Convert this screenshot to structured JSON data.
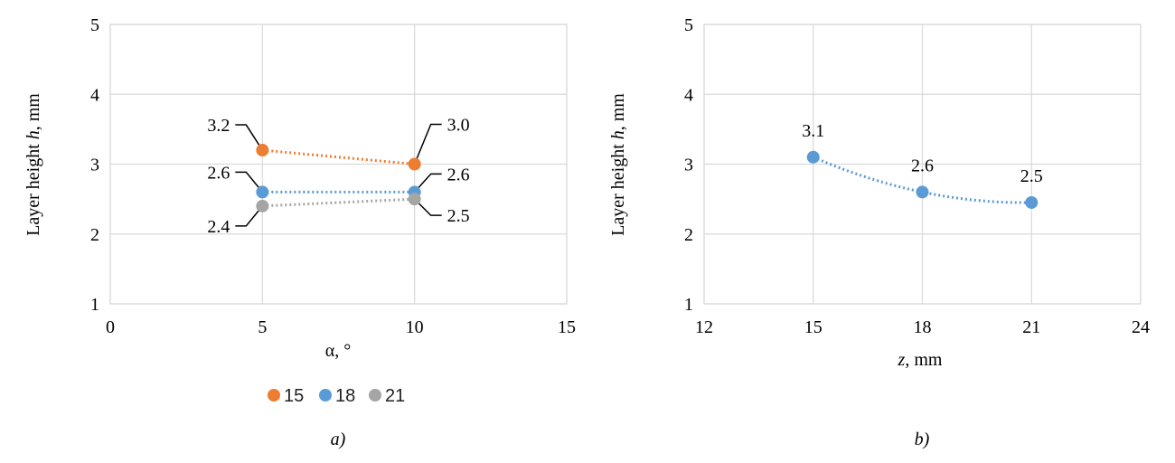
{
  "chart_data": [
    {
      "type": "scatter",
      "xlabel_prefix": "α",
      "xlabel_suffix": ", °",
      "ylabel_prefix": "Layer height ",
      "ylabel_var": "h",
      "ylabel_suffix": ", mm",
      "xlim": [
        0,
        15
      ],
      "ylim": [
        1,
        5
      ],
      "xticks": [
        "0",
        "5",
        "10",
        "15"
      ],
      "yticks": [
        "1",
        "2",
        "3",
        "4",
        "5"
      ],
      "grid": true,
      "legend": "bottom",
      "caption": "a)",
      "series": [
        {
          "name": "15",
          "color": "#ED7D31",
          "x": [
            5,
            10
          ],
          "y": [
            3.2,
            3.0
          ],
          "labels": [
            "3.2",
            "3.0"
          ]
        },
        {
          "name": "18",
          "color": "#5B9BD5",
          "x": [
            5,
            10
          ],
          "y": [
            2.6,
            2.6
          ],
          "labels": [
            "2.6",
            "2.6"
          ]
        },
        {
          "name": "21",
          "color": "#A5A5A5",
          "x": [
            5,
            10
          ],
          "y": [
            2.4,
            2.5
          ],
          "labels": [
            "2.4",
            "2.5"
          ]
        }
      ]
    },
    {
      "type": "scatter",
      "xlabel_var": "z",
      "xlabel_suffix": ", mm",
      "ylabel_prefix": "Layer height ",
      "ylabel_var": "h",
      "ylabel_suffix": ", mm",
      "xlim": [
        12,
        24
      ],
      "ylim": [
        1,
        5
      ],
      "xticks": [
        "12",
        "15",
        "18",
        "21",
        "24"
      ],
      "yticks": [
        "1",
        "2",
        "3",
        "4",
        "5"
      ],
      "grid": true,
      "caption": "b)",
      "series": [
        {
          "color": "#5B9BD5",
          "x": [
            15,
            18,
            21
          ],
          "y": [
            3.1,
            2.6,
            2.45
          ],
          "labels": [
            "3.1",
            "2.6",
            "2.5"
          ]
        }
      ]
    }
  ]
}
